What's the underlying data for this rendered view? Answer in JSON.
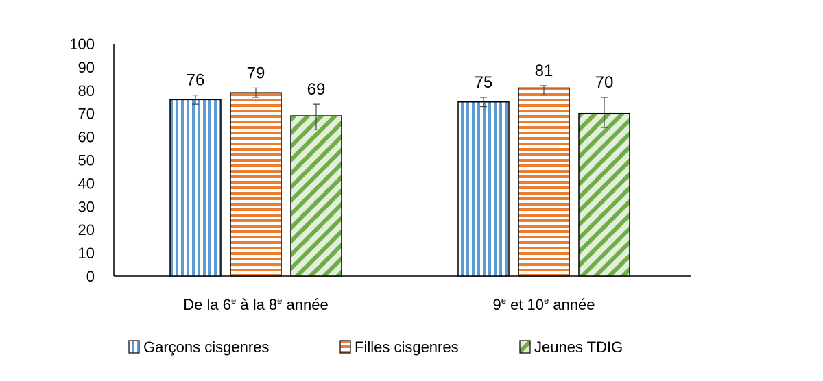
{
  "chart_data": {
    "type": "bar",
    "categories": [
      {
        "pre": "De la 6",
        "sup1": "e",
        "mid": " à la 8",
        "sup2": "e",
        "post": " année"
      },
      {
        "pre": "9",
        "sup1": "e",
        "mid": " et 10",
        "sup2": "e",
        "post": " année"
      }
    ],
    "series": [
      {
        "name": "Garçons cisgenres",
        "color": "#5b9bd5",
        "pattern": "vertical-stripes",
        "values": [
          76,
          75
        ],
        "error": [
          [
            74,
            78
          ],
          [
            73,
            77
          ]
        ]
      },
      {
        "name": "Filles cisgenres",
        "color": "#ed7d31",
        "pattern": "horizontal-stripes",
        "values": [
          79,
          81
        ],
        "error": [
          [
            77,
            81
          ],
          [
            78,
            82
          ]
        ]
      },
      {
        "name": "Jeunes TDIG",
        "color": "#70ad47",
        "pattern": "diagonal-stripes",
        "values": [
          69,
          70
        ],
        "error": [
          [
            63,
            74
          ],
          [
            64,
            77
          ]
        ]
      }
    ],
    "ylim": [
      0,
      100
    ],
    "yticks": [
      0,
      10,
      20,
      30,
      40,
      50,
      60,
      70,
      80,
      90,
      100
    ],
    "grid": false,
    "legend_position": "bottom",
    "data_labels": true
  }
}
